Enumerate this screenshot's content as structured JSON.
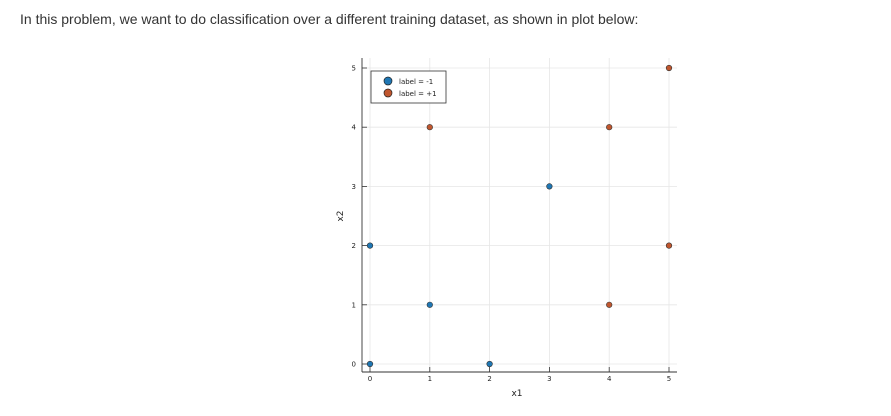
{
  "intro_text": "In this problem, we want to do classification over a different training dataset, as shown in plot below:",
  "chart_data": {
    "type": "scatter",
    "title": "",
    "xlabel": "x1",
    "ylabel": "x2",
    "xlim": [
      0,
      5
    ],
    "ylim": [
      0,
      5
    ],
    "xticks": [
      "0",
      "1",
      "2",
      "3",
      "4",
      "5"
    ],
    "yticks": [
      "0",
      "1",
      "2",
      "3",
      "4",
      "5"
    ],
    "grid": true,
    "legend_position": "top-left",
    "series": [
      {
        "name": "label = -1",
        "color": "#1f77b4",
        "points": [
          [
            0,
            0
          ],
          [
            0,
            2
          ],
          [
            1,
            1
          ],
          [
            2,
            0
          ],
          [
            3,
            3
          ]
        ]
      },
      {
        "name": "label = +1",
        "color": "#c0562e",
        "points": [
          [
            1,
            4
          ],
          [
            4,
            4
          ],
          [
            4,
            1
          ],
          [
            5,
            5
          ],
          [
            5,
            2
          ]
        ]
      }
    ]
  }
}
